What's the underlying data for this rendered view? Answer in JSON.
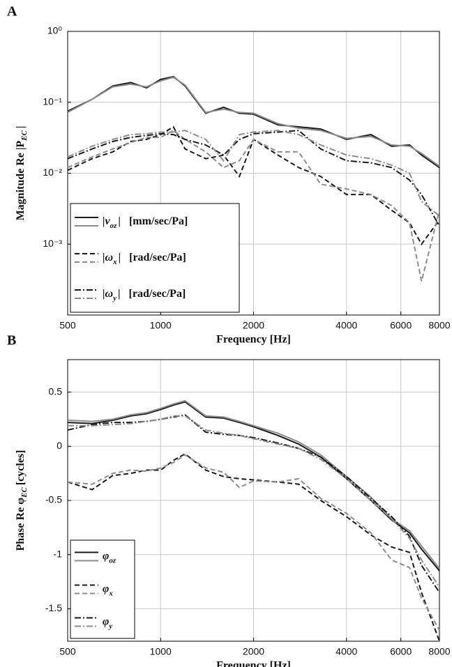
{
  "chart_data": [
    {
      "type": "line",
      "panel": "A",
      "xscale": "log",
      "yscale": "log",
      "grid": true,
      "ylabel": "Magnitude Re |P",
      "ylabel_sub": "EC",
      "ylabel_end": "|",
      "xlabel": "Frequency [Hz]",
      "xlim": [
        500,
        8000
      ],
      "xticks": [
        500,
        1000,
        2000,
        4000,
        6000,
        8000
      ],
      "ylim": [
        0.0001,
        1
      ],
      "yticks": [
        {
          "value": 1,
          "label": "10⁰"
        },
        {
          "value": 0.1,
          "label": "10⁻¹"
        },
        {
          "value": 0.01,
          "label": "10⁻²"
        },
        {
          "value": 0.001,
          "label": "10⁻³"
        }
      ],
      "legend": "lower left",
      "x": [
        500,
        600,
        700,
        800,
        900,
        1000,
        1100,
        1200,
        1400,
        1600,
        1800,
        2000,
        2400,
        2800,
        3300,
        4000,
        4800,
        5600,
        6400,
        7000,
        8000
      ],
      "series": [
        {
          "symbol": "|v",
          "subscript": "oz",
          "suffix": "|",
          "unit": "[mm/sec/Pa]",
          "dash": "solid",
          "lines": [
            {
              "color": "#1a1a1a",
              "values": [
                0.075,
                0.11,
                0.17,
                0.19,
                0.16,
                0.21,
                0.23,
                0.17,
                0.07,
                0.085,
                0.07,
                0.068,
                0.048,
                0.045,
                0.042,
                0.03,
                0.035,
                0.024,
                0.025,
                0.018,
                0.012
              ]
            },
            {
              "color": "#8c8c8c",
              "values": [
                0.072,
                0.11,
                0.165,
                0.18,
                0.165,
                0.2,
                0.225,
                0.175,
                0.072,
                0.08,
                0.072,
                0.07,
                0.05,
                0.043,
                0.04,
                0.031,
                0.033,
                0.025,
                0.024,
                0.019,
                0.0125
              ]
            }
          ]
        },
        {
          "symbol": "|ω",
          "subscript": "x",
          "suffix": "|",
          "unit": "[rad/sec/Pa]",
          "dash": "dashed",
          "lines": [
            {
              "color": "#1a1a1a",
              "values": [
                0.011,
                0.016,
                0.02,
                0.028,
                0.03,
                0.035,
                0.045,
                0.022,
                0.016,
                0.018,
                0.009,
                0.03,
                0.018,
                0.012,
                0.009,
                0.005,
                0.005,
                0.003,
                0.002,
                0.001,
                0.0022
              ]
            },
            {
              "color": "#8c8c8c",
              "values": [
                0.012,
                0.017,
                0.022,
                0.027,
                0.032,
                0.032,
                0.04,
                0.03,
                0.02,
                0.012,
                0.015,
                0.03,
                0.02,
                0.02,
                0.007,
                0.006,
                0.005,
                0.0035,
                0.002,
                0.0003,
                0.003
              ]
            }
          ]
        },
        {
          "symbol": "|ω",
          "subscript": "y",
          "suffix": "|",
          "unit": "[rad/sec/Pa]",
          "dash": "dashdot",
          "lines": [
            {
              "color": "#1a1a1a",
              "values": [
                0.016,
                0.022,
                0.028,
                0.032,
                0.034,
                0.036,
                0.035,
                0.03,
                0.025,
                0.018,
                0.03,
                0.036,
                0.038,
                0.04,
                0.022,
                0.015,
                0.014,
                0.012,
                0.008,
                0.005,
                0.0018
              ]
            },
            {
              "color": "#8c8c8c",
              "values": [
                0.017,
                0.024,
                0.03,
                0.035,
                0.036,
                0.038,
                0.038,
                0.04,
                0.03,
                0.015,
                0.035,
                0.038,
                0.04,
                0.035,
                0.025,
                0.018,
                0.016,
                0.013,
                0.01,
                0.004,
                0.0025
              ]
            }
          ]
        }
      ]
    },
    {
      "type": "line",
      "panel": "B",
      "xscale": "log",
      "yscale": "linear",
      "grid": true,
      "ylabel": "Phase Re φ",
      "ylabel_sub": "EC",
      "ylabel_end": "[cycles]",
      "xlabel": "Frequency [Hz]",
      "xlim": [
        500,
        8000
      ],
      "xticks": [
        500,
        1000,
        2000,
        4000,
        6000,
        8000
      ],
      "ylim": [
        -1.8,
        0.8
      ],
      "yticks": [
        0.5,
        0,
        -0.5,
        -1,
        -1.5
      ],
      "legend": "lower left",
      "x": [
        500,
        600,
        700,
        800,
        900,
        1000,
        1100,
        1200,
        1400,
        1600,
        1800,
        2000,
        2400,
        2800,
        3300,
        4000,
        4800,
        5600,
        6400,
        7000,
        8000
      ],
      "series": [
        {
          "symbol": "φ",
          "subscript": "oz",
          "dash": "solid",
          "lines": [
            {
              "color": "#1a1a1a",
              "values": [
                0.22,
                0.21,
                0.24,
                0.28,
                0.3,
                0.34,
                0.38,
                0.41,
                0.27,
                0.26,
                0.22,
                0.18,
                0.1,
                0.02,
                -0.1,
                -0.3,
                -0.5,
                -0.68,
                -0.8,
                -0.95,
                -1.15
              ]
            },
            {
              "color": "#8c8c8c",
              "values": [
                0.24,
                0.23,
                0.25,
                0.29,
                0.31,
                0.35,
                0.39,
                0.42,
                0.28,
                0.27,
                0.23,
                0.19,
                0.12,
                0.04,
                -0.08,
                -0.28,
                -0.47,
                -0.67,
                -0.78,
                -0.92,
                -1.13
              ]
            }
          ]
        },
        {
          "symbol": "φ",
          "subscript": "x",
          "dash": "dashed",
          "lines": [
            {
              "color": "#1a1a1a",
              "values": [
                -0.33,
                -0.4,
                -0.27,
                -0.25,
                -0.22,
                -0.22,
                -0.13,
                -0.07,
                -0.22,
                -0.28,
                -0.3,
                -0.31,
                -0.33,
                -0.35,
                -0.5,
                -0.65,
                -0.82,
                -0.93,
                -0.98,
                -1.35,
                -1.8
              ]
            },
            {
              "color": "#8c8c8c",
              "values": [
                -0.33,
                -0.35,
                -0.25,
                -0.22,
                -0.23,
                -0.2,
                -0.15,
                -0.08,
                -0.2,
                -0.24,
                -0.38,
                -0.32,
                -0.33,
                -0.3,
                -0.48,
                -0.62,
                -0.8,
                -1.05,
                -1.12,
                -1.4,
                -1.7
              ]
            }
          ]
        },
        {
          "symbol": "φ",
          "subscript": "y",
          "dash": "dashdot",
          "lines": [
            {
              "color": "#1a1a1a",
              "values": [
                0.15,
                0.2,
                0.22,
                0.22,
                0.23,
                0.25,
                0.27,
                0.29,
                0.13,
                0.11,
                0.1,
                0.08,
                0.03,
                -0.02,
                -0.1,
                -0.28,
                -0.48,
                -0.65,
                -0.83,
                -1.1,
                -1.35
              ]
            },
            {
              "color": "#8c8c8c",
              "values": [
                0.19,
                0.19,
                0.2,
                0.21,
                0.23,
                0.25,
                0.28,
                0.28,
                0.15,
                0.12,
                0.1,
                0.07,
                0.02,
                -0.02,
                -0.12,
                -0.3,
                -0.5,
                -0.67,
                -0.85,
                -1.05,
                -1.3
              ]
            }
          ]
        }
      ]
    }
  ]
}
